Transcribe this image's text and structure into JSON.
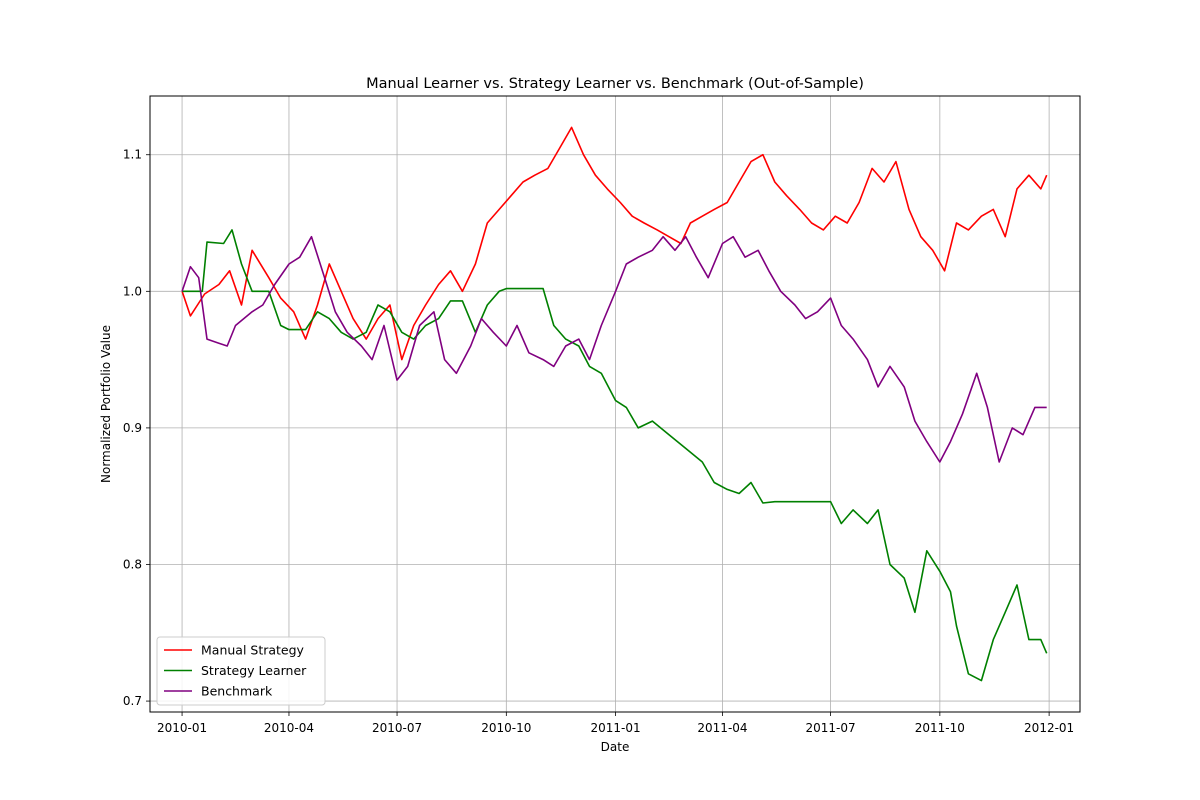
{
  "chart_data": {
    "type": "line",
    "title": "Manual Learner vs. Strategy Learner vs. Benchmark (Out-of-Sample)",
    "xlabel": "Date",
    "ylabel": "Normalized Portfolio Value",
    "xlim": [
      "2009-12-05",
      "2012-01-27"
    ],
    "ylim": [
      0.692,
      1.143
    ],
    "xticks": [
      "2010-01",
      "2010-04",
      "2010-07",
      "2010-10",
      "2011-01",
      "2011-04",
      "2011-07",
      "2011-10",
      "2012-01"
    ],
    "yticks": [
      0.7,
      0.8,
      0.9,
      1.0,
      1.1
    ],
    "grid": true,
    "legend": "lower-left",
    "series": [
      {
        "name": "Manual Strategy",
        "color": "#ff0000",
        "x": [
          "2010-01-01",
          "2010-01-08",
          "2010-01-20",
          "2010-02-01",
          "2010-02-10",
          "2010-02-20",
          "2010-03-01",
          "2010-03-15",
          "2010-03-25",
          "2010-04-05",
          "2010-04-15",
          "2010-04-25",
          "2010-05-05",
          "2010-05-15",
          "2010-05-25",
          "2010-06-05",
          "2010-06-15",
          "2010-06-25",
          "2010-07-05",
          "2010-07-15",
          "2010-07-25",
          "2010-08-05",
          "2010-08-15",
          "2010-08-25",
          "2010-09-05",
          "2010-09-15",
          "2010-09-25",
          "2010-10-05",
          "2010-10-15",
          "2010-10-25",
          "2010-11-05",
          "2010-11-15",
          "2010-11-25",
          "2010-12-05",
          "2010-12-15",
          "2010-12-25",
          "2011-01-05",
          "2011-01-15",
          "2011-01-25",
          "2011-02-05",
          "2011-02-15",
          "2011-02-25",
          "2011-03-05",
          "2011-03-15",
          "2011-03-25",
          "2011-04-05",
          "2011-04-15",
          "2011-04-25",
          "2011-05-05",
          "2011-05-15",
          "2011-05-25",
          "2011-06-05",
          "2011-06-15",
          "2011-06-25",
          "2011-07-05",
          "2011-07-15",
          "2011-07-25",
          "2011-08-05",
          "2011-08-15",
          "2011-08-25",
          "2011-09-05",
          "2011-09-15",
          "2011-09-25",
          "2011-10-05",
          "2011-10-15",
          "2011-10-25",
          "2011-11-05",
          "2011-11-15",
          "2011-11-25",
          "2011-12-05",
          "2011-12-15",
          "2011-12-25",
          "2011-12-30"
        ],
        "values": [
          1.0,
          0.982,
          0.998,
          1.005,
          1.015,
          0.99,
          1.03,
          1.01,
          0.995,
          0.985,
          0.965,
          0.99,
          1.02,
          1.0,
          0.98,
          0.965,
          0.98,
          0.99,
          0.95,
          0.975,
          0.99,
          1.005,
          1.015,
          1.0,
          1.02,
          1.05,
          1.06,
          1.07,
          1.08,
          1.085,
          1.09,
          1.105,
          1.12,
          1.1,
          1.085,
          1.075,
          1.065,
          1.055,
          1.05,
          1.045,
          1.04,
          1.035,
          1.05,
          1.055,
          1.06,
          1.065,
          1.08,
          1.095,
          1.1,
          1.08,
          1.07,
          1.06,
          1.05,
          1.045,
          1.055,
          1.05,
          1.065,
          1.09,
          1.08,
          1.095,
          1.06,
          1.04,
          1.03,
          1.015,
          1.05,
          1.045,
          1.055,
          1.06,
          1.04,
          1.075,
          1.085,
          1.075,
          1.085
        ]
      },
      {
        "name": "Strategy Learner",
        "color": "#008000",
        "x": [
          "2010-01-01",
          "2010-01-18",
          "2010-01-22",
          "2010-02-05",
          "2010-02-12",
          "2010-02-20",
          "2010-03-01",
          "2010-03-15",
          "2010-03-25",
          "2010-04-01",
          "2010-04-15",
          "2010-04-25",
          "2010-05-05",
          "2010-05-15",
          "2010-05-25",
          "2010-06-05",
          "2010-06-15",
          "2010-06-25",
          "2010-07-05",
          "2010-07-15",
          "2010-07-25",
          "2010-08-05",
          "2010-08-15",
          "2010-08-25",
          "2010-09-05",
          "2010-09-15",
          "2010-09-25",
          "2010-10-01",
          "2010-10-15",
          "2010-11-01",
          "2010-11-10",
          "2010-11-20",
          "2010-12-01",
          "2010-12-10",
          "2010-12-20",
          "2011-01-01",
          "2011-01-10",
          "2011-01-20",
          "2011-02-01",
          "2011-02-15",
          "2011-03-01",
          "2011-03-15",
          "2011-03-25",
          "2011-04-05",
          "2011-04-15",
          "2011-04-25",
          "2011-05-05",
          "2011-05-15",
          "2011-06-01",
          "2011-06-15",
          "2011-07-01",
          "2011-07-10",
          "2011-07-20",
          "2011-08-01",
          "2011-08-10",
          "2011-08-20",
          "2011-09-01",
          "2011-09-10",
          "2011-09-20",
          "2011-10-01",
          "2011-10-10",
          "2011-10-15",
          "2011-10-25",
          "2011-11-05",
          "2011-11-15",
          "2011-11-25",
          "2011-12-05",
          "2011-12-15",
          "2011-12-25",
          "2011-12-30"
        ],
        "values": [
          1.0,
          1.0,
          1.036,
          1.035,
          1.045,
          1.02,
          1.0,
          1.0,
          0.975,
          0.972,
          0.972,
          0.985,
          0.98,
          0.97,
          0.965,
          0.97,
          0.99,
          0.985,
          0.97,
          0.965,
          0.975,
          0.98,
          0.993,
          0.993,
          0.97,
          0.99,
          1.0,
          1.002,
          1.002,
          1.002,
          0.975,
          0.965,
          0.96,
          0.945,
          0.94,
          0.92,
          0.915,
          0.9,
          0.905,
          0.895,
          0.885,
          0.875,
          0.86,
          0.855,
          0.852,
          0.86,
          0.845,
          0.846,
          0.846,
          0.846,
          0.846,
          0.83,
          0.84,
          0.83,
          0.84,
          0.8,
          0.79,
          0.765,
          0.81,
          0.795,
          0.78,
          0.755,
          0.72,
          0.715,
          0.745,
          0.765,
          0.785,
          0.745,
          0.745,
          0.735
        ]
      },
      {
        "name": "Benchmark",
        "color": "#800080",
        "x": [
          "2010-01-01",
          "2010-01-08",
          "2010-01-15",
          "2010-01-22",
          "2010-02-01",
          "2010-02-08",
          "2010-02-15",
          "2010-03-01",
          "2010-03-10",
          "2010-03-20",
          "2010-04-01",
          "2010-04-10",
          "2010-04-20",
          "2010-05-01",
          "2010-05-10",
          "2010-05-20",
          "2010-06-01",
          "2010-06-10",
          "2010-06-20",
          "2010-07-01",
          "2010-07-10",
          "2010-07-20",
          "2010-08-01",
          "2010-08-10",
          "2010-08-20",
          "2010-09-01",
          "2010-09-10",
          "2010-09-20",
          "2010-10-01",
          "2010-10-10",
          "2010-10-20",
          "2010-11-01",
          "2010-11-10",
          "2010-11-20",
          "2010-12-01",
          "2010-12-10",
          "2010-12-20",
          "2011-01-01",
          "2011-01-10",
          "2011-01-20",
          "2011-02-01",
          "2011-02-10",
          "2011-02-20",
          "2011-03-01",
          "2011-03-10",
          "2011-03-20",
          "2011-04-01",
          "2011-04-10",
          "2011-04-20",
          "2011-05-01",
          "2011-05-10",
          "2011-05-20",
          "2011-06-01",
          "2011-06-10",
          "2011-06-20",
          "2011-07-01",
          "2011-07-10",
          "2011-07-20",
          "2011-08-01",
          "2011-08-10",
          "2011-08-20",
          "2011-09-01",
          "2011-09-10",
          "2011-09-20",
          "2011-10-01",
          "2011-10-10",
          "2011-10-20",
          "2011-11-01",
          "2011-11-10",
          "2011-11-20",
          "2011-12-01",
          "2011-12-10",
          "2011-12-20",
          "2011-12-30"
        ],
        "values": [
          1.0,
          1.018,
          1.01,
          0.965,
          0.962,
          0.96,
          0.975,
          0.985,
          0.99,
          1.005,
          1.02,
          1.025,
          1.04,
          1.01,
          0.985,
          0.97,
          0.96,
          0.95,
          0.975,
          0.935,
          0.945,
          0.975,
          0.985,
          0.95,
          0.94,
          0.96,
          0.98,
          0.97,
          0.96,
          0.975,
          0.955,
          0.95,
          0.945,
          0.96,
          0.965,
          0.95,
          0.975,
          1.0,
          1.02,
          1.025,
          1.03,
          1.04,
          1.03,
          1.04,
          1.025,
          1.01,
          1.035,
          1.04,
          1.025,
          1.03,
          1.015,
          1.0,
          0.99,
          0.98,
          0.985,
          0.995,
          0.975,
          0.965,
          0.95,
          0.93,
          0.945,
          0.93,
          0.905,
          0.89,
          0.875,
          0.89,
          0.91,
          0.94,
          0.915,
          0.875,
          0.9,
          0.895,
          0.915,
          0.915
        ]
      }
    ]
  }
}
